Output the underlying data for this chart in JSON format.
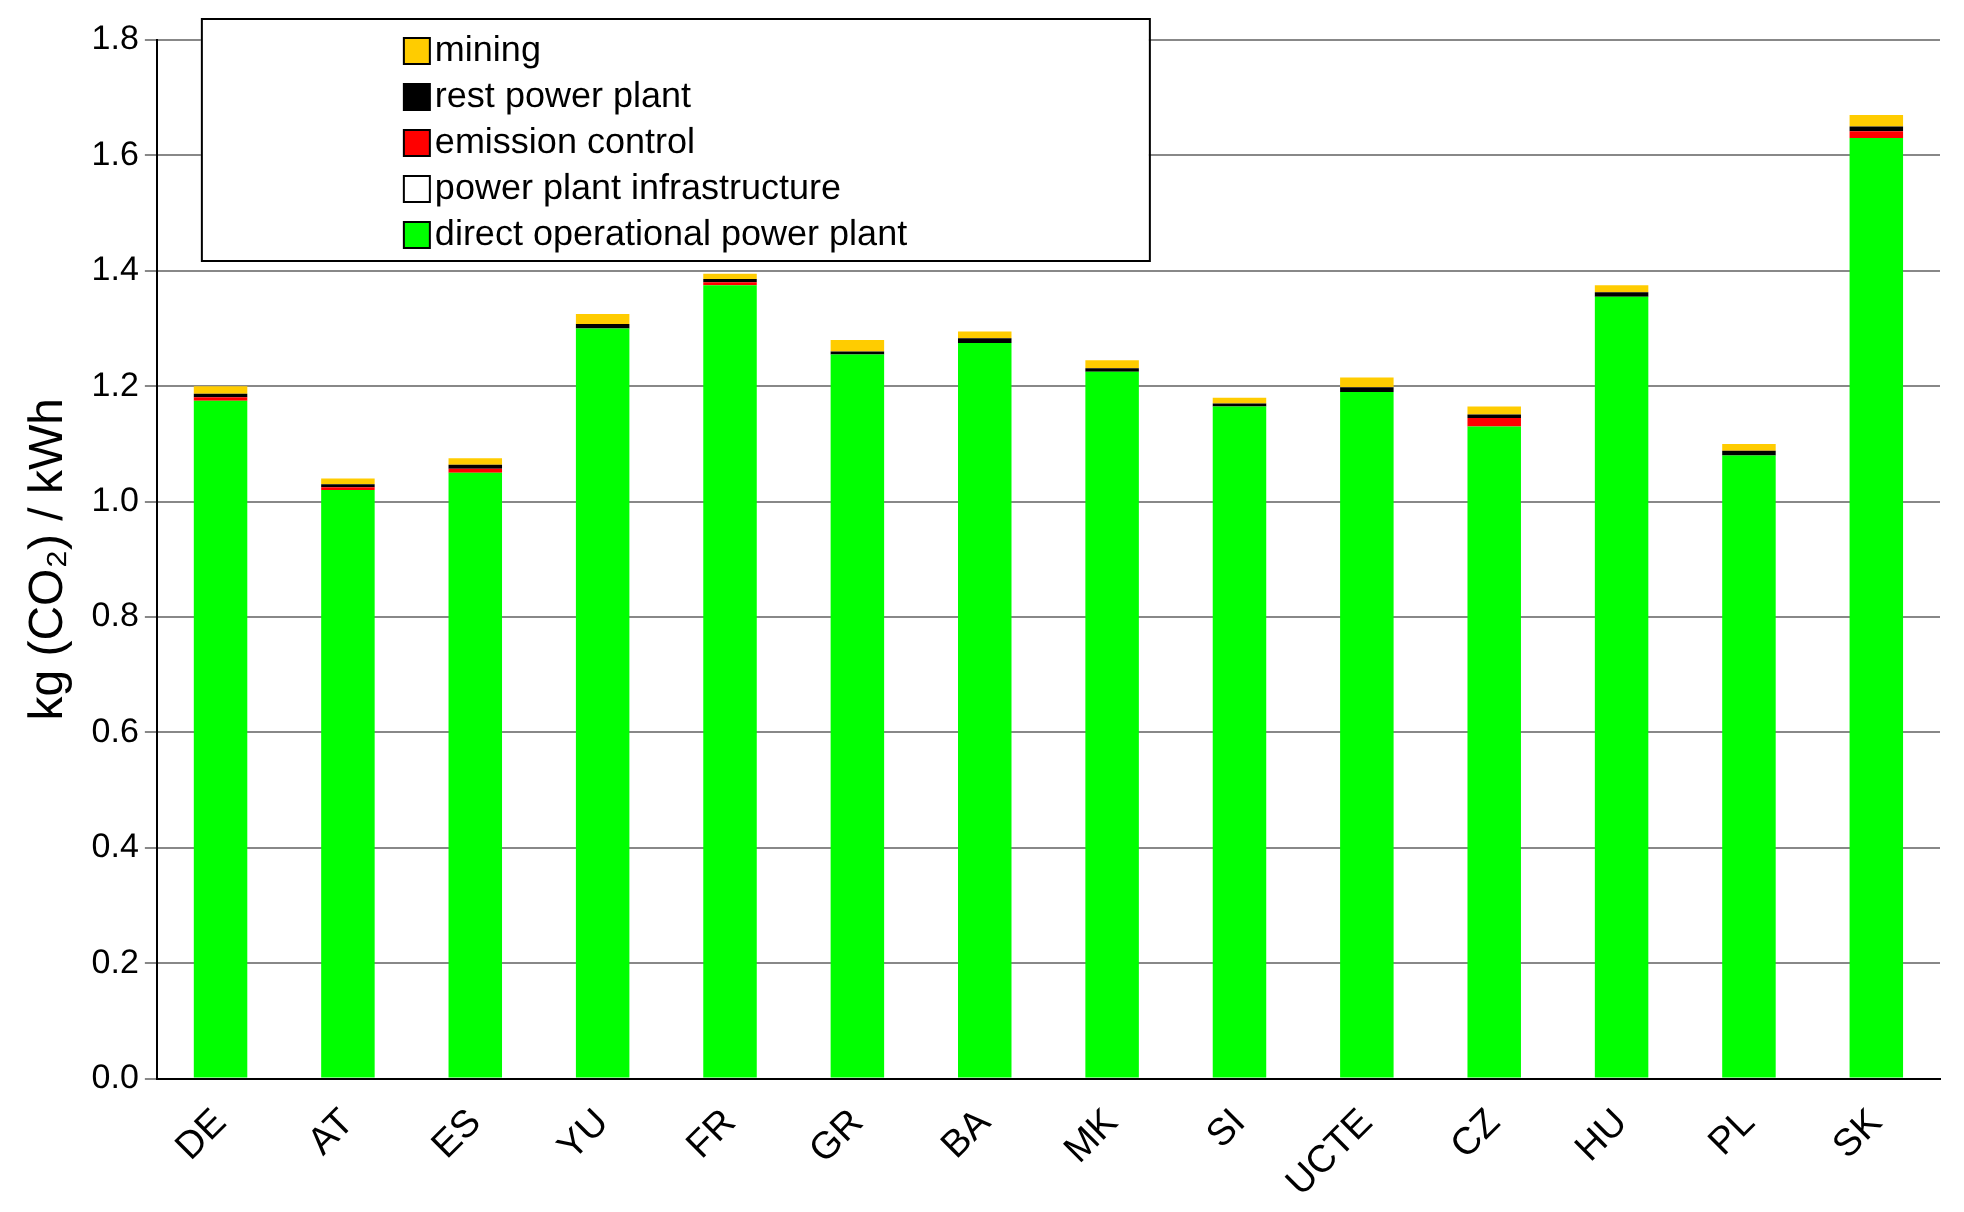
{
  "chart_data": {
    "type": "bar",
    "stacked": true,
    "ylabel": "kg (CO₂) / kWh",
    "categories": [
      "DE",
      "AT",
      "ES",
      "YU",
      "FR",
      "GR",
      "BA",
      "MK",
      "SI",
      "UCTE",
      "CZ",
      "HU",
      "PL",
      "SK"
    ],
    "series": [
      {
        "name": "direct operational power plant",
        "color": "#00ff00",
        "values": [
          1.175,
          1.02,
          1.05,
          1.3,
          1.375,
          1.255,
          1.275,
          1.225,
          1.165,
          1.19,
          1.13,
          1.355,
          1.08,
          1.63
        ]
      },
      {
        "name": "power plant infrastructure",
        "color": "#ffffff",
        "values": [
          0,
          0,
          0,
          0,
          0,
          0,
          0,
          0,
          0,
          0,
          0,
          0,
          0,
          0
        ]
      },
      {
        "name": "emission control",
        "color": "#ff0000",
        "values": [
          0.006,
          0.005,
          0.007,
          0,
          0.005,
          0,
          0,
          0,
          0,
          0,
          0.015,
          0,
          0,
          0.012
        ]
      },
      {
        "name": "rest power plant",
        "color": "#000000",
        "values": [
          0.006,
          0.005,
          0.007,
          0.008,
          0.006,
          0.005,
          0.008,
          0.006,
          0.005,
          0.008,
          0.006,
          0.008,
          0.008,
          0.008
        ]
      },
      {
        "name": "mining",
        "color": "#ffcc00",
        "values": [
          0.013,
          0.01,
          0.011,
          0.017,
          0.009,
          0.02,
          0.012,
          0.014,
          0.01,
          0.017,
          0.014,
          0.012,
          0.012,
          0.02
        ]
      }
    ],
    "ylim": [
      0,
      1.8
    ],
    "yticks": [
      {
        "value": 0,
        "label": "0.0"
      },
      {
        "value": 0.2,
        "label": "0.2"
      },
      {
        "value": 0.4,
        "label": "0.4"
      },
      {
        "value": 0.6,
        "label": "0.6"
      },
      {
        "value": 0.8,
        "label": "0.8"
      },
      {
        "value": 1,
        "label": "1.0"
      },
      {
        "value": 1.2,
        "label": "1.2"
      },
      {
        "value": 1.4,
        "label": "1.4"
      },
      {
        "value": 1.6,
        "label": "1.6"
      },
      {
        "value": 1.8,
        "label": "1.8"
      }
    ],
    "grid": "y",
    "legend": "top"
  }
}
